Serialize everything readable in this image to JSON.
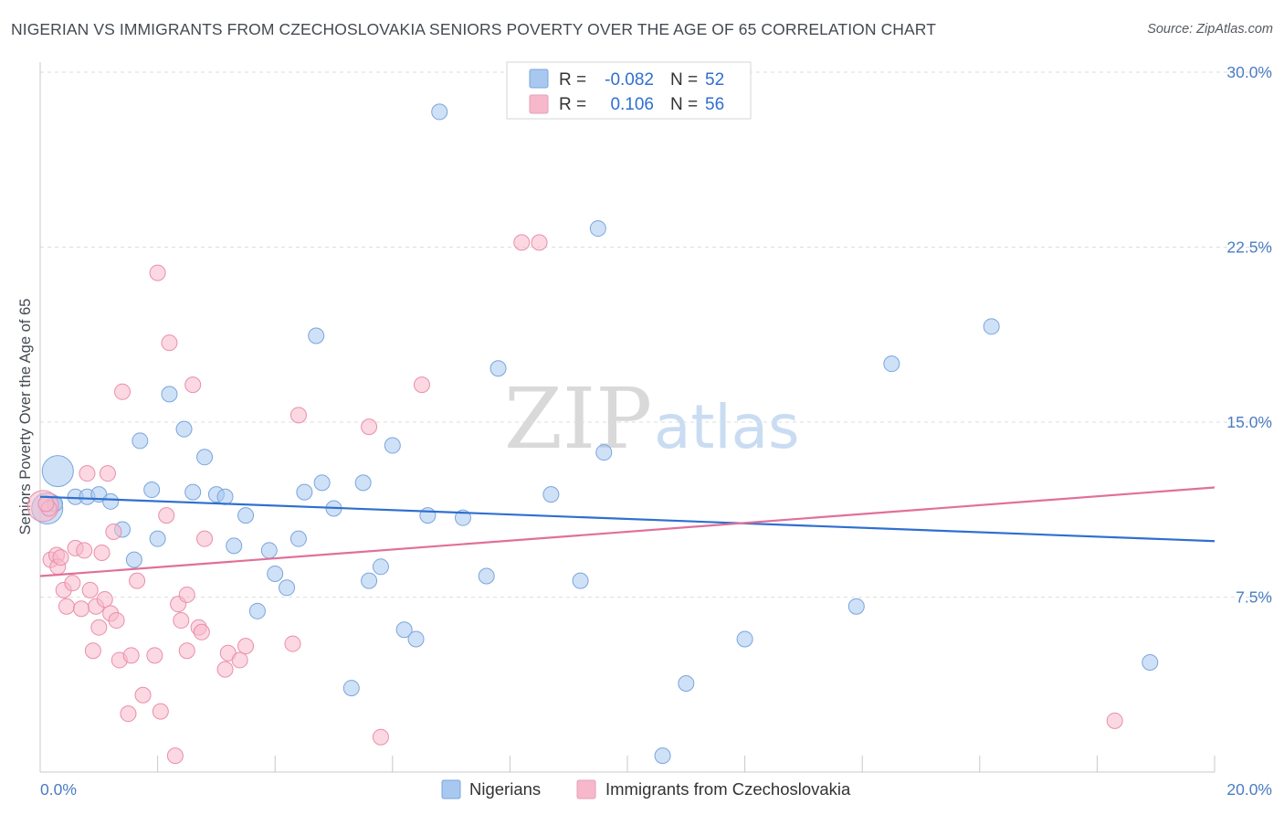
{
  "title": "NIGERIAN VS IMMIGRANTS FROM CZECHOSLOVAKIA SENIORS POVERTY OVER THE AGE OF 65 CORRELATION CHART",
  "source": "Source: ZipAtlas.com",
  "watermark": {
    "part1": "ZIP",
    "part2": "atlas"
  },
  "legend_top": {
    "rows": [
      {
        "r_label": "R =",
        "r_value": "-0.082",
        "n_label": "N =",
        "n_value": "52",
        "color": "#a8c8f0"
      },
      {
        "r_label": "R =",
        "r_value": "0.106",
        "n_label": "N =",
        "n_value": "56",
        "color": "#f7b8cb"
      }
    ]
  },
  "legend_bottom": [
    {
      "label": "Nigerians",
      "color": "#a8c8f0"
    },
    {
      "label": "Immigrants from Czechoslovakia",
      "color": "#f7b8cb"
    }
  ],
  "chart_data": {
    "type": "scatter",
    "title": "NIGERIAN VS IMMIGRANTS FROM CZECHOSLOVAKIA SENIORS POVERTY OVER THE AGE OF 65 CORRELATION CHART",
    "xlabel": "",
    "ylabel": "Seniors Poverty Over the Age of 65",
    "xlim": [
      0,
      20
    ],
    "ylim": [
      0,
      30
    ],
    "x_tick_labels": [
      "0.0%",
      "20.0%"
    ],
    "y_ticks": [
      7.5,
      15.0,
      22.5,
      30.0
    ],
    "y_tick_labels": [
      "7.5%",
      "15.0%",
      "22.5%",
      "30.0%"
    ],
    "grid": true,
    "legend_placement": "top-center",
    "series": [
      {
        "name": "Nigerians",
        "color": "#a8c8f0",
        "stroke": "#7aa5dc",
        "trend_color": "#2f6fd0",
        "trend": {
          "x": [
            0,
            20
          ],
          "y": [
            11.8,
            9.9
          ]
        },
        "points": [
          {
            "x": 0.12,
            "y": 11.3,
            "big": true
          },
          {
            "x": 0.3,
            "y": 12.9,
            "big": true
          },
          {
            "x": 0.6,
            "y": 11.8
          },
          {
            "x": 0.8,
            "y": 11.8
          },
          {
            "x": 1.0,
            "y": 11.9
          },
          {
            "x": 1.2,
            "y": 11.6
          },
          {
            "x": 0.25,
            "y": 11.5
          },
          {
            "x": 1.4,
            "y": 10.4
          },
          {
            "x": 1.6,
            "y": 9.1
          },
          {
            "x": 1.7,
            "y": 14.2
          },
          {
            "x": 1.9,
            "y": 12.1
          },
          {
            "x": 2.0,
            "y": 10.0
          },
          {
            "x": 2.2,
            "y": 16.2
          },
          {
            "x": 2.45,
            "y": 14.7
          },
          {
            "x": 2.6,
            "y": 12.0
          },
          {
            "x": 2.8,
            "y": 13.5
          },
          {
            "x": 3.0,
            "y": 11.9
          },
          {
            "x": 3.15,
            "y": 11.8
          },
          {
            "x": 3.3,
            "y": 9.7
          },
          {
            "x": 3.5,
            "y": 11.0
          },
          {
            "x": 3.7,
            "y": 6.9
          },
          {
            "x": 3.9,
            "y": 9.5
          },
          {
            "x": 4.0,
            "y": 8.5
          },
          {
            "x": 4.2,
            "y": 7.9
          },
          {
            "x": 4.4,
            "y": 10.0
          },
          {
            "x": 4.5,
            "y": 12.0
          },
          {
            "x": 4.7,
            "y": 18.7
          },
          {
            "x": 4.8,
            "y": 12.4
          },
          {
            "x": 5.0,
            "y": 11.3
          },
          {
            "x": 5.3,
            "y": 3.6
          },
          {
            "x": 5.5,
            "y": 12.4
          },
          {
            "x": 5.6,
            "y": 8.2
          },
          {
            "x": 5.8,
            "y": 8.8
          },
          {
            "x": 6.0,
            "y": 14.0
          },
          {
            "x": 6.2,
            "y": 6.1
          },
          {
            "x": 6.4,
            "y": 5.7
          },
          {
            "x": 6.6,
            "y": 11.0
          },
          {
            "x": 6.8,
            "y": 28.3
          },
          {
            "x": 7.2,
            "y": 10.9
          },
          {
            "x": 7.6,
            "y": 8.4
          },
          {
            "x": 7.8,
            "y": 17.3
          },
          {
            "x": 8.7,
            "y": 11.9
          },
          {
            "x": 9.2,
            "y": 8.2
          },
          {
            "x": 9.5,
            "y": 23.3
          },
          {
            "x": 9.6,
            "y": 13.7
          },
          {
            "x": 10.6,
            "y": 0.7
          },
          {
            "x": 11.0,
            "y": 3.8
          },
          {
            "x": 12.0,
            "y": 5.7
          },
          {
            "x": 13.9,
            "y": 7.1
          },
          {
            "x": 14.5,
            "y": 17.5
          },
          {
            "x": 16.2,
            "y": 19.1
          },
          {
            "x": 18.9,
            "y": 4.7
          }
        ]
      },
      {
        "name": "Immigrants from Czechoslovakia",
        "color": "#f7b8cb",
        "stroke": "#e98fab",
        "trend_color": "#e0709a",
        "trend": {
          "x": [
            0,
            20
          ],
          "y": [
            8.4,
            12.2
          ]
        },
        "points": [
          {
            "x": 0.05,
            "y": 11.4,
            "big": true
          },
          {
            "x": 0.15,
            "y": 11.3
          },
          {
            "x": 0.18,
            "y": 9.1
          },
          {
            "x": 0.28,
            "y": 9.3
          },
          {
            "x": 0.3,
            "y": 8.8
          },
          {
            "x": 0.35,
            "y": 9.2
          },
          {
            "x": 0.4,
            "y": 7.8
          },
          {
            "x": 0.45,
            "y": 7.1
          },
          {
            "x": 0.55,
            "y": 8.1
          },
          {
            "x": 0.6,
            "y": 9.6
          },
          {
            "x": 0.7,
            "y": 7.0
          },
          {
            "x": 0.75,
            "y": 9.5
          },
          {
            "x": 0.8,
            "y": 12.8
          },
          {
            "x": 0.85,
            "y": 7.8
          },
          {
            "x": 0.9,
            "y": 5.2
          },
          {
            "x": 0.95,
            "y": 7.1
          },
          {
            "x": 1.0,
            "y": 6.2
          },
          {
            "x": 1.05,
            "y": 9.4
          },
          {
            "x": 1.1,
            "y": 7.4
          },
          {
            "x": 1.15,
            "y": 12.8
          },
          {
            "x": 1.2,
            "y": 6.8
          },
          {
            "x": 1.25,
            "y": 10.3
          },
          {
            "x": 1.3,
            "y": 6.5
          },
          {
            "x": 1.35,
            "y": 4.8
          },
          {
            "x": 1.4,
            "y": 16.3
          },
          {
            "x": 1.5,
            "y": 2.5
          },
          {
            "x": 1.55,
            "y": 5.0
          },
          {
            "x": 1.65,
            "y": 8.2
          },
          {
            "x": 1.75,
            "y": 3.3
          },
          {
            "x": 1.95,
            "y": 5.0
          },
          {
            "x": 2.0,
            "y": 21.4
          },
          {
            "x": 2.05,
            "y": 2.6
          },
          {
            "x": 2.15,
            "y": 11.0
          },
          {
            "x": 2.2,
            "y": 18.4
          },
          {
            "x": 2.3,
            "y": 0.7
          },
          {
            "x": 2.35,
            "y": 7.2
          },
          {
            "x": 2.4,
            "y": 6.5
          },
          {
            "x": 2.5,
            "y": 7.6
          },
          {
            "x": 2.5,
            "y": 5.2
          },
          {
            "x": 2.6,
            "y": 16.6
          },
          {
            "x": 2.7,
            "y": 6.2
          },
          {
            "x": 2.75,
            "y": 6.0
          },
          {
            "x": 2.8,
            "y": 10.0
          },
          {
            "x": 3.15,
            "y": 4.4
          },
          {
            "x": 3.2,
            "y": 5.1
          },
          {
            "x": 3.4,
            "y": 4.8
          },
          {
            "x": 3.5,
            "y": 5.4
          },
          {
            "x": 4.3,
            "y": 5.5
          },
          {
            "x": 4.4,
            "y": 15.3
          },
          {
            "x": 5.6,
            "y": 14.8
          },
          {
            "x": 5.8,
            "y": 1.5
          },
          {
            "x": 6.5,
            "y": 16.6
          },
          {
            "x": 8.2,
            "y": 22.7
          },
          {
            "x": 8.5,
            "y": 22.7
          },
          {
            "x": 18.3,
            "y": 2.2
          },
          {
            "x": 0.1,
            "y": 11.5
          }
        ]
      }
    ]
  }
}
